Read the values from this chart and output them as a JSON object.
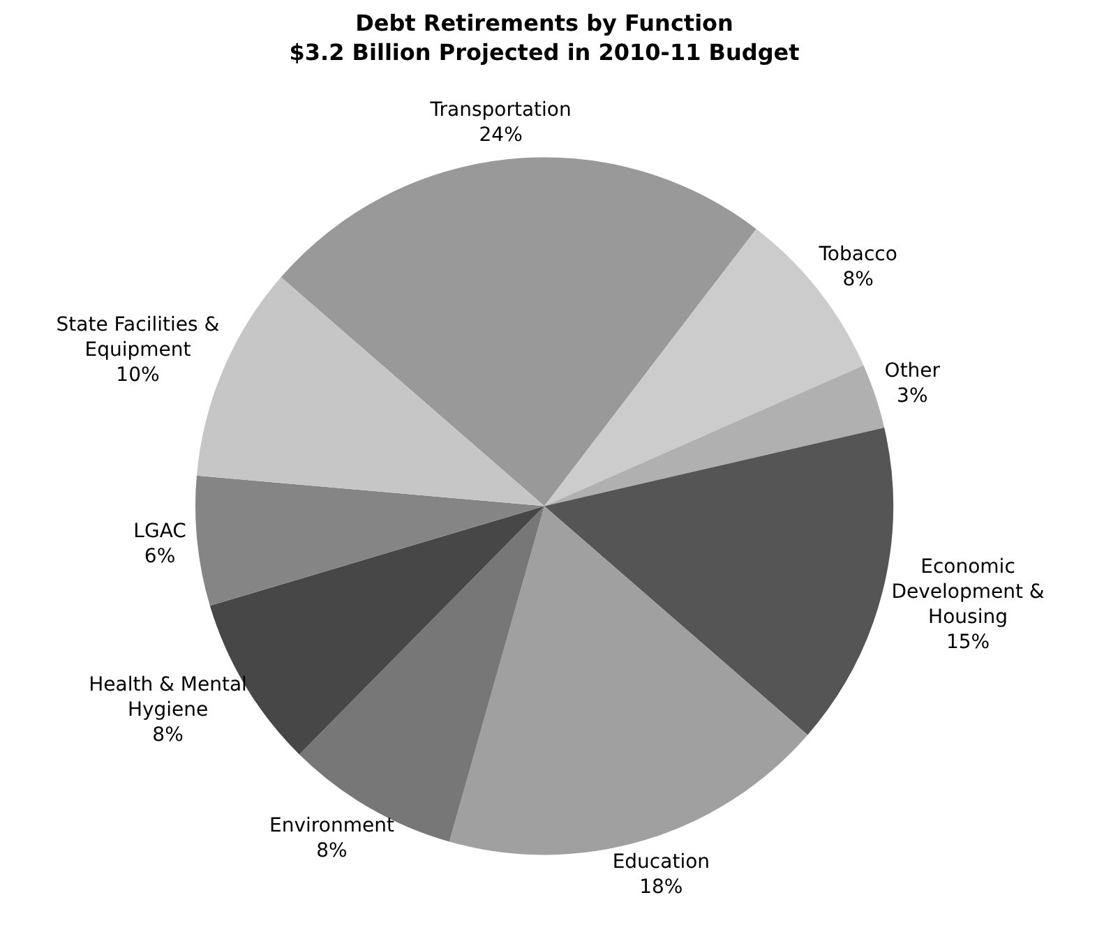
{
  "chart_data": {
    "type": "pie",
    "title": "Debt Retirements by Function",
    "subtitle": "$3.2 Billion Projected in 2010-11 Budget",
    "categories": [
      "Transportation",
      "Tobacco",
      "Other",
      "Economic Development & Housing",
      "Education",
      "Environment",
      "Health & Mental Hygiene",
      "LGAC",
      "State Facilities & Equipment"
    ],
    "values": [
      24,
      8,
      3,
      15,
      18,
      8,
      8,
      6,
      10
    ],
    "value_labels": [
      "24%",
      "8%",
      "3%",
      "15%",
      "18%",
      "8%",
      "8%",
      "6%",
      "10%"
    ],
    "colors": [
      "#999999",
      "#cccccc",
      "#b0b0b0",
      "#555555",
      "#a0a0a0",
      "#777777",
      "#474747",
      "#858585",
      "#c6c6c6"
    ],
    "legend": false
  }
}
